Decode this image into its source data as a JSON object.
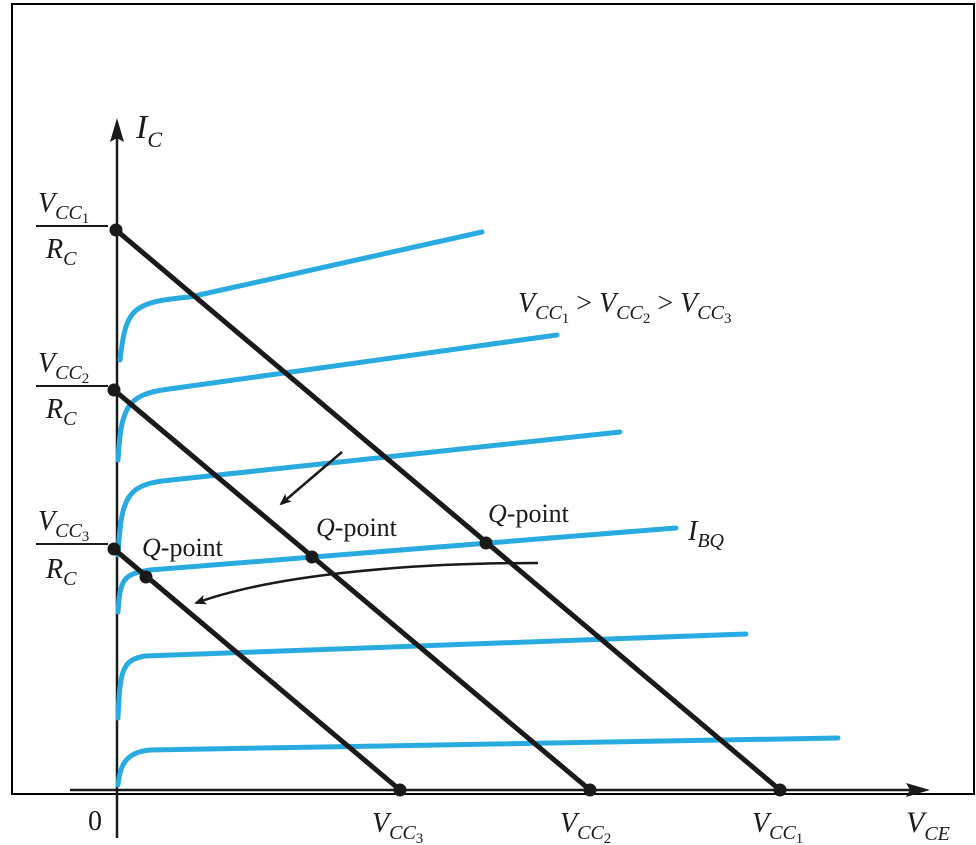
{
  "diagram": {
    "axes": {
      "y_label_main": "I",
      "y_label_sub": "C",
      "x_label_main": "V",
      "x_label_sub": "CE",
      "origin": "0"
    },
    "intercepts_y": [
      {
        "num_main": "V",
        "num_sub": "CC",
        "num_subsub": "1",
        "den_main": "R",
        "den_sub": "C"
      },
      {
        "num_main": "V",
        "num_sub": "CC",
        "num_subsub": "2",
        "den_main": "R",
        "den_sub": "C"
      },
      {
        "num_main": "V",
        "num_sub": "CC",
        "num_subsub": "3",
        "den_main": "R",
        "den_sub": "C"
      }
    ],
    "intercepts_x": [
      {
        "main": "V",
        "sub": "CC",
        "subsub": "3"
      },
      {
        "main": "V",
        "sub": "CC",
        "subsub": "2"
      },
      {
        "main": "V",
        "sub": "CC",
        "subsub": "1"
      }
    ],
    "relation": {
      "parts": [
        "V",
        "CC",
        "1",
        " > ",
        "V",
        "CC",
        "2",
        " > ",
        "V",
        "CC",
        "3"
      ]
    },
    "q_point_label": "Q",
    "q_point_suffix": "-point",
    "ibq_main": "I",
    "ibq_sub": "BQ",
    "colors": {
      "curve": "#29abe2",
      "line": "#1a1a1a",
      "border": "#000000"
    }
  }
}
